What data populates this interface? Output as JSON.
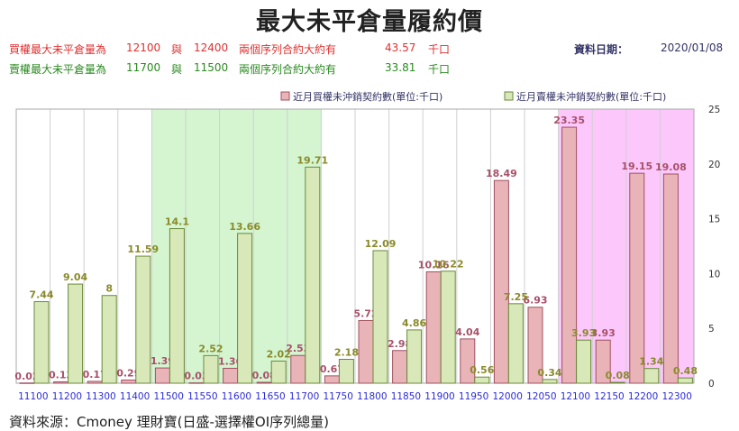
{
  "title": "最大未平倉量履約價",
  "info": {
    "row1": {
      "label": "買權最大未平倉量為",
      "strike1": "12100",
      "sep": "與",
      "strike2": "12400",
      "desc": "兩個序列合約大約有",
      "value": "43.57",
      "unit": "千口"
    },
    "row2": {
      "label": "賣權最大未平倉量為",
      "strike1": "11700",
      "sep": "與",
      "strike2": "11500",
      "desc": "兩個序列合約大約有",
      "value": "33.81",
      "unit": "千口"
    },
    "date_label": "資料日期：",
    "date_value": "2020/01/08"
  },
  "footer": "資料來源：Cmoney 理財寶(日盛-選擇權OI序列總量)",
  "colors": {
    "call_fill": "#e8b4b8",
    "call_stroke": "#a05060",
    "call_label": "#a8506a",
    "put_fill": "#d8e8b8",
    "put_stroke": "#6a8a3a",
    "put_label": "#8a8a2a",
    "highlight_green": "#d4f5d0",
    "highlight_pink": "#fcc8fc",
    "axis_label": "#2b2bd8"
  },
  "chart_data": {
    "type": "bar",
    "categories": [
      "11100",
      "11200",
      "11300",
      "11400",
      "11500",
      "11550",
      "11600",
      "11650",
      "11700",
      "11750",
      "11800",
      "11850",
      "11900",
      "11950",
      "12000",
      "12050",
      "12100",
      "12150",
      "12200",
      "12300"
    ],
    "series": [
      {
        "name": "近月買權未沖銷契約數(單位:千口)",
        "values": [
          0.02,
          0.13,
          0.17,
          0.29,
          1.39,
          0.03,
          1.36,
          0.08,
          2.53,
          0.67,
          5.72,
          2.98,
          10.16,
          4.04,
          18.49,
          6.93,
          23.35,
          3.93,
          19.15,
          19.08
        ]
      },
      {
        "name": "近月賣權未沖銷契約數(單位:千口)",
        "values": [
          7.44,
          9.04,
          8,
          11.59,
          14.1,
          2.52,
          13.66,
          2.02,
          19.71,
          2.18,
          12.09,
          4.86,
          10.22,
          0.56,
          7.25,
          0.34,
          3.93,
          0.08,
          1.34,
          0.48
        ]
      }
    ],
    "ylim": [
      0,
      25
    ],
    "yticks": [
      0,
      5,
      10,
      15,
      20,
      25
    ],
    "highlight_ranges": [
      {
        "from": "11500",
        "to": "11700",
        "color": "green"
      },
      {
        "from": "12100",
        "to": "12300",
        "color": "pink"
      }
    ],
    "legend_position": "top-right",
    "grid": "vertical"
  }
}
